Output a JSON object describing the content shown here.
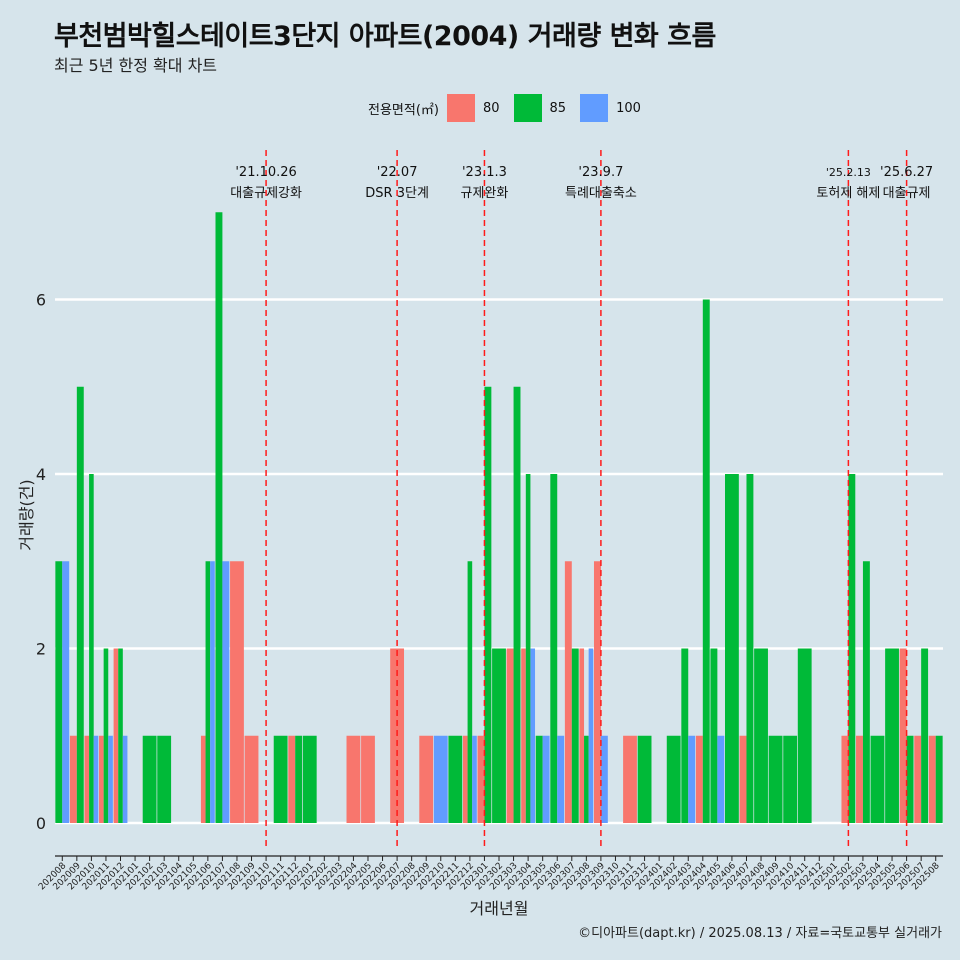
{
  "title": "부천범박힐스테이트3단지 아파트(2004) 거래량 변화 흐름",
  "subtitle": "최근 5년 한정 확대 차트",
  "caption": "©디아파트(dapt.kr) / 2025.08.13 / 자료=국토교통부 실거래가",
  "legend": {
    "title": "전용면적(㎡)",
    "items": [
      {
        "label": "80",
        "color": "#f8766d"
      },
      {
        "label": "85",
        "color": "#00ba38"
      },
      {
        "label": "100",
        "color": "#619cff"
      }
    ]
  },
  "chart_data": {
    "type": "bar",
    "xlabel": "거래년월",
    "ylabel": "거래량(건)",
    "ylim": [
      0,
      7.5
    ],
    "yticks": [
      0,
      2,
      4,
      6
    ],
    "grid": "horizontal",
    "legend_position": "top",
    "categories": [
      "202008",
      "202009",
      "202010",
      "202011",
      "202012",
      "202101",
      "202102",
      "202103",
      "202104",
      "202105",
      "202106",
      "202107",
      "202108",
      "202109",
      "202110",
      "202111",
      "202112",
      "202201",
      "202202",
      "202203",
      "202204",
      "202205",
      "202206",
      "202207",
      "202208",
      "202209",
      "202210",
      "202211",
      "202212",
      "202301",
      "202302",
      "202303",
      "202304",
      "202305",
      "202306",
      "202307",
      "202308",
      "202309",
      "202310",
      "202311",
      "202312",
      "202401",
      "202402",
      "202403",
      "202404",
      "202405",
      "202406",
      "202407",
      "202408",
      "202409",
      "202410",
      "202411",
      "202412",
      "202501",
      "202502",
      "202503",
      "202504",
      "202505",
      "202506",
      "202507",
      "202508"
    ],
    "series": [
      {
        "name": "80",
        "color": "#f8766d",
        "values": [
          0,
          1,
          1,
          1,
          2,
          0,
          0,
          0,
          0,
          0,
          1,
          0,
          3,
          1,
          0,
          0,
          1,
          0,
          0,
          0,
          1,
          1,
          0,
          2,
          0,
          1,
          0,
          0,
          1,
          1,
          0,
          2,
          2,
          0,
          0,
          3,
          2,
          3,
          0,
          1,
          0,
          0,
          0,
          0,
          1,
          0,
          0,
          1,
          0,
          0,
          0,
          0,
          0,
          0,
          1,
          1,
          0,
          0,
          2,
          1,
          1
        ]
      },
      {
        "name": "85",
        "color": "#00ba38",
        "values": [
          3,
          5,
          4,
          2,
          2,
          0,
          1,
          1,
          0,
          0,
          3,
          7,
          0,
          0,
          0,
          1,
          1,
          1,
          0,
          0,
          0,
          0,
          0,
          0,
          0,
          0,
          0,
          1,
          3,
          5,
          2,
          5,
          4,
          1,
          4,
          2,
          1,
          0,
          0,
          0,
          1,
          0,
          1,
          2,
          6,
          2,
          4,
          4,
          2,
          1,
          1,
          2,
          0,
          0,
          4,
          3,
          1,
          2,
          1,
          2,
          1
        ]
      },
      {
        "name": "100",
        "color": "#619cff",
        "values": [
          3,
          0,
          1,
          1,
          1,
          0,
          0,
          0,
          0,
          0,
          3,
          3,
          0,
          0,
          0,
          0,
          0,
          0,
          0,
          0,
          0,
          0,
          0,
          0,
          0,
          0,
          1,
          0,
          1,
          0,
          0,
          0,
          2,
          1,
          1,
          0,
          2,
          1,
          0,
          0,
          0,
          0,
          0,
          1,
          0,
          1,
          0,
          0,
          0,
          0,
          0,
          0,
          0,
          0,
          0,
          0,
          0,
          0,
          0,
          0,
          0
        ]
      }
    ],
    "events": [
      {
        "date": "'21.10.26",
        "label": "대출규제강화",
        "category": "202110"
      },
      {
        "date": "'22.07",
        "label": "DSR 3단계",
        "category": "202207"
      },
      {
        "date": "'23.1.3",
        "label": "규제완화",
        "category": "202301"
      },
      {
        "date": "'23.9.7",
        "label": "특례대출축소",
        "category": "202309"
      },
      {
        "date": "'25.2.13",
        "label": "토허제 해제",
        "category": "202502"
      },
      {
        "date": "'25.6.27",
        "label": "대출규제",
        "category": "202506"
      }
    ]
  }
}
